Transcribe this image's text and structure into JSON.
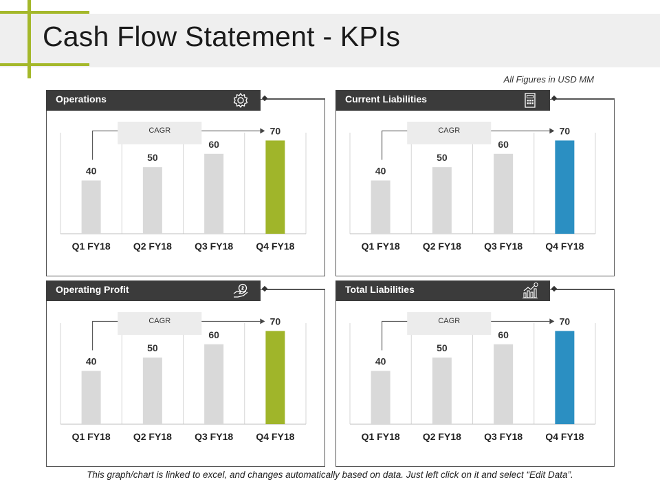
{
  "page": {
    "title": "Cash Flow Statement - KPIs",
    "figures_note": "All Figures in USD MM",
    "footer": "This graph/chart is linked to excel, and changes automatically based on data.  Just left click on it and select “Edit Data”.",
    "accent_color": "#a4b82a",
    "header_color": "#3b3b3b"
  },
  "panels": [
    {
      "title": "Operations",
      "icon": "gear-icon",
      "cagr_label": "CAGR",
      "highlight_color": "#a0b52a"
    },
    {
      "title": "Current Liabilities",
      "icon": "calculator-icon",
      "cagr_label": "CAGR",
      "highlight_color": "#2b8fc2"
    },
    {
      "title": "Operating Profit",
      "icon": "money-hand-icon",
      "cagr_label": "CAGR",
      "highlight_color": "#a0b52a"
    },
    {
      "title": "Total Liabilities",
      "icon": "growth-chart-icon",
      "cagr_label": "CAGR",
      "highlight_color": "#2b8fc2"
    }
  ],
  "chart_data": [
    {
      "type": "bar",
      "categories": [
        "Q1 FY18",
        "Q2 FY18",
        "Q3 FY18",
        "Q4 FY18"
      ],
      "values": [
        40,
        50,
        60,
        70
      ],
      "title": "Operations",
      "ylim": [
        0,
        80
      ],
      "grid": "vertical separators",
      "bar_color": "#d9d9d9",
      "highlight_color": "#a0b52a"
    },
    {
      "type": "bar",
      "categories": [
        "Q1 FY18",
        "Q2 FY18",
        "Q3 FY18",
        "Q4 FY18"
      ],
      "values": [
        40,
        50,
        60,
        70
      ],
      "title": "Current Liabilities",
      "ylim": [
        0,
        80
      ],
      "grid": "vertical separators",
      "bar_color": "#d9d9d9",
      "highlight_color": "#2b8fc2"
    },
    {
      "type": "bar",
      "categories": [
        "Q1 FY18",
        "Q2 FY18",
        "Q3 FY18",
        "Q4 FY18"
      ],
      "values": [
        40,
        50,
        60,
        70
      ],
      "title": "Operating Profit",
      "ylim": [
        0,
        80
      ],
      "grid": "vertical separators",
      "bar_color": "#d9d9d9",
      "highlight_color": "#a0b52a"
    },
    {
      "type": "bar",
      "categories": [
        "Q1 FY18",
        "Q2 FY18",
        "Q3 FY18",
        "Q4 FY18"
      ],
      "values": [
        40,
        50,
        60,
        70
      ],
      "title": "Total Liabilities",
      "ylim": [
        0,
        80
      ],
      "grid": "vertical separators",
      "bar_color": "#d9d9d9",
      "highlight_color": "#2b8fc2"
    }
  ]
}
